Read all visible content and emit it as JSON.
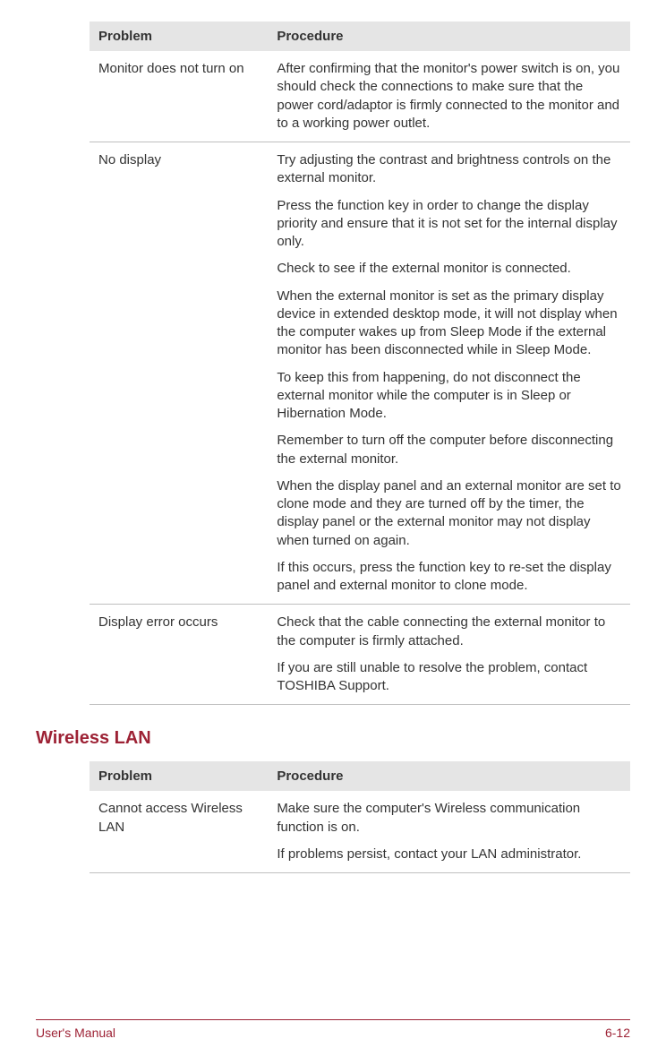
{
  "tables": {
    "monitor": {
      "header": {
        "problem": "Problem",
        "procedure": "Procedure"
      },
      "rows": [
        {
          "problem": "Monitor does not turn on",
          "procedure": [
            "After confirming that the monitor's power switch is on, you should check the connections to make sure that the power cord/adaptor is firmly connected to the monitor and to a working power outlet."
          ]
        },
        {
          "problem": "No display",
          "procedure": [
            "Try adjusting the contrast and brightness controls on the external monitor.",
            "Press the function key in order to change the display priority and ensure that it is not set for the internal display only.",
            "Check to see if the external monitor is connected.",
            "When the external monitor is set as the primary display device in extended desktop mode, it will not display when the computer wakes up from Sleep Mode if the external monitor has been disconnected while in Sleep Mode.",
            "To keep this from happening, do not disconnect the external monitor while the computer is in Sleep or Hibernation Mode.",
            "Remember to turn off the computer before disconnecting the external monitor.",
            "When the display panel and an external monitor are set to clone mode and they are turned off by the timer, the display panel or the external monitor may not display when turned on again.",
            "If this occurs, press the function key to re-set the display panel and external monitor to clone mode."
          ]
        },
        {
          "problem": "Display error occurs",
          "procedure": [
            "Check that the cable connecting the external monitor to the computer is firmly attached.",
            "If you are still unable to resolve the problem, contact TOSHIBA Support."
          ]
        }
      ]
    },
    "wireless": {
      "title": "Wireless LAN",
      "header": {
        "problem": "Problem",
        "procedure": "Procedure"
      },
      "rows": [
        {
          "problem": "Cannot access Wireless LAN",
          "procedure": [
            "Make sure the computer's Wireless communication function is on.",
            "If problems persist, contact your LAN administrator."
          ]
        }
      ]
    }
  },
  "footer": {
    "left": "User's Manual",
    "right": "6-12"
  },
  "colors": {
    "accent": "#9d2235",
    "header_bg": "#e5e5e5",
    "row_border": "#bfbfbf",
    "text": "#333333"
  }
}
